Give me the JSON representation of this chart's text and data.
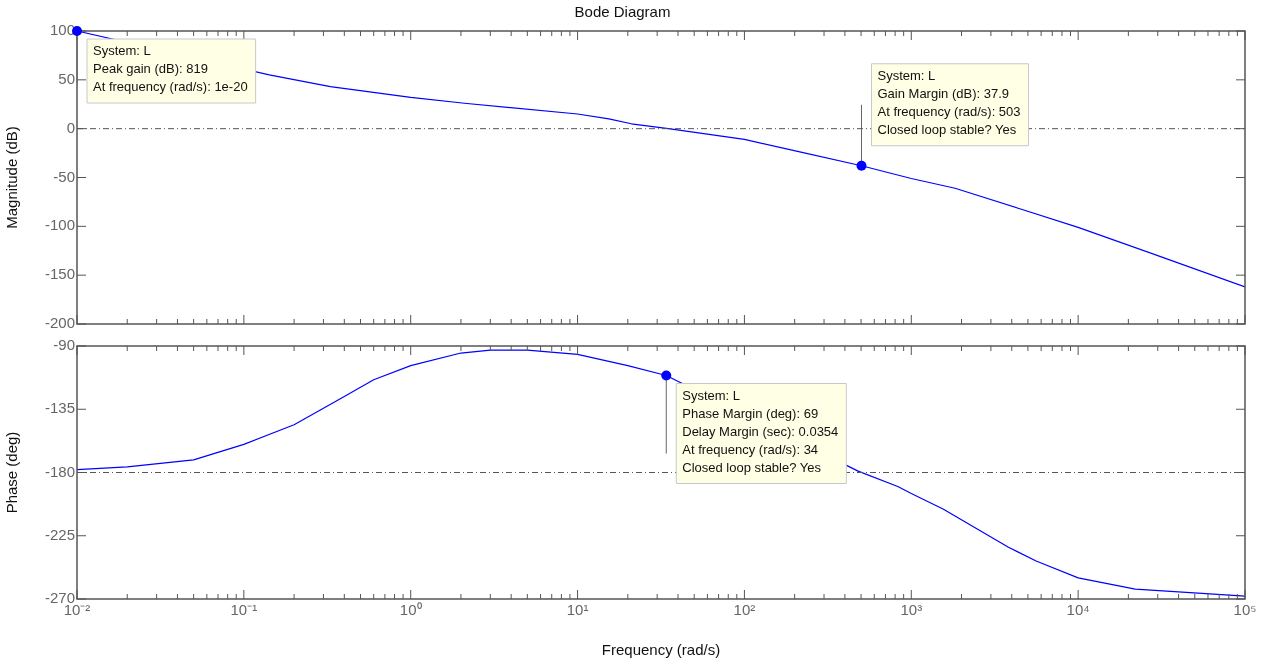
{
  "chart_data": [
    {
      "type": "line",
      "title": "Bode Diagram",
      "ylabel": "Magnitude (dB)",
      "log": "x",
      "tick_labels": "y",
      "series": [
        {
          "color": "#0000ff",
          "x": [
            0.01,
            0.142,
            0.33,
            1,
            2.1,
            10,
            15.4,
            21,
            35,
            100,
            218,
            503,
            1000,
            1830,
            4470,
            10000,
            30000,
            100000
          ],
          "values": [
            100,
            55,
            43,
            32,
            26,
            15,
            10,
            5,
            0,
            -11,
            -24,
            -38,
            -51,
            -61,
            -82,
            -101,
            -130,
            -162
          ]
        }
      ],
      "xlim": [
        0.01,
        100000
      ],
      "xticks": [
        {
          "value": 0.01,
          "label": null
        },
        {
          "value": 0.02,
          "label": null
        },
        {
          "value": 0.03,
          "label": null
        },
        {
          "value": 0.04,
          "label": null
        },
        {
          "value": 0.05,
          "label": null
        },
        {
          "value": 0.06,
          "label": null
        },
        {
          "value": 0.07,
          "label": null
        },
        {
          "value": 0.08,
          "label": null
        },
        {
          "value": 0.09,
          "label": null
        },
        {
          "value": 0.1,
          "label": null
        },
        {
          "value": 0.2,
          "label": null
        },
        {
          "value": 0.3,
          "label": null
        },
        {
          "value": 0.4,
          "label": null
        },
        {
          "value": 0.5,
          "label": null
        },
        {
          "value": 0.6,
          "label": null
        },
        {
          "value": 0.7,
          "label": null
        },
        {
          "value": 0.8,
          "label": null
        },
        {
          "value": 0.9,
          "label": null
        },
        {
          "value": 1,
          "label": null
        },
        {
          "value": 2,
          "label": null
        },
        {
          "value": 3,
          "label": null
        },
        {
          "value": 4,
          "label": null
        },
        {
          "value": 5,
          "label": null
        },
        {
          "value": 6,
          "label": null
        },
        {
          "value": 7,
          "label": null
        },
        {
          "value": 8,
          "label": null
        },
        {
          "value": 9,
          "label": null
        },
        {
          "value": 10,
          "label": null
        },
        {
          "value": 20,
          "label": null
        },
        {
          "value": 30,
          "label": null
        },
        {
          "value": 40,
          "label": null
        },
        {
          "value": 50,
          "label": null
        },
        {
          "value": 60,
          "label": null
        },
        {
          "value": 70,
          "label": null
        },
        {
          "value": 80,
          "label": null
        },
        {
          "value": 90,
          "label": null
        },
        {
          "value": 100,
          "label": null
        },
        {
          "value": 200,
          "label": null
        },
        {
          "value": 300,
          "label": null
        },
        {
          "value": 400,
          "label": null
        },
        {
          "value": 500,
          "label": null
        },
        {
          "value": 600,
          "label": null
        },
        {
          "value": 700,
          "label": null
        },
        {
          "value": 800,
          "label": null
        },
        {
          "value": 900,
          "label": null
        },
        {
          "value": 1000,
          "label": null
        },
        {
          "value": 2000,
          "label": null
        },
        {
          "value": 3000,
          "label": null
        },
        {
          "value": 4000,
          "label": null
        },
        {
          "value": 5000,
          "label": null
        },
        {
          "value": 6000,
          "label": null
        },
        {
          "value": 7000,
          "label": null
        },
        {
          "value": 8000,
          "label": null
        },
        {
          "value": 9000,
          "label": null
        },
        {
          "value": 10000,
          "label": null
        },
        {
          "value": 20000,
          "label": null
        },
        {
          "value": 30000,
          "label": null
        },
        {
          "value": 40000,
          "label": null
        },
        {
          "value": 50000,
          "label": null
        },
        {
          "value": 60000,
          "label": null
        },
        {
          "value": 70000,
          "label": null
        },
        {
          "value": 80000,
          "label": null
        },
        {
          "value": 90000,
          "label": null
        },
        {
          "value": 100000,
          "label": null
        }
      ],
      "ylim": [
        -200,
        100
      ],
      "yticks": [
        -200,
        -150,
        -100,
        -50,
        0,
        50,
        100
      ],
      "ref_lines": [
        {
          "axis": "y",
          "value": 0,
          "color": "#555555",
          "line_style": "dashed"
        }
      ],
      "annotations": [
        {
          "text": "System: L\nPeak gain (dB): 819\nAt frequency (rad/s): 1e-20",
          "x": 0.01,
          "y": 100
        },
        {
          "text": "System: L\nGain Margin (dB): 37.9\nAt frequency (rad/s): 503\nClosed loop stable? Yes",
          "x": 503,
          "y": -38
        }
      ]
    },
    {
      "type": "line",
      "xlabel": "Frequency (rad/s)",
      "ylabel": "Phase (deg)",
      "log": "x",
      "series": [
        {
          "color": "#0000ff",
          "x": [
            0.01,
            0.02,
            0.05,
            0.1,
            0.2,
            0.4,
            0.6,
            1,
            2,
            3,
            5,
            10,
            20,
            34,
            480,
            830,
            1000,
            1550,
            3800,
            5600,
            10000,
            22000,
            100000
          ],
          "values": [
            -178,
            -176,
            -171,
            -160,
            -146,
            -126,
            -114,
            -104,
            -95,
            -93,
            -93,
            -96,
            -104,
            -111,
            -179,
            -190,
            -195,
            -206,
            -233,
            -243,
            -255,
            -263,
            -268
          ]
        }
      ],
      "xlim": [
        0.01,
        100000
      ],
      "xticks": [
        {
          "value": 0.01,
          "label": "10⁻²"
        },
        {
          "value": 0.02,
          "label": null
        },
        {
          "value": 0.03,
          "label": null
        },
        {
          "value": 0.04,
          "label": null
        },
        {
          "value": 0.05,
          "label": null
        },
        {
          "value": 0.06,
          "label": null
        },
        {
          "value": 0.07,
          "label": null
        },
        {
          "value": 0.08,
          "label": null
        },
        {
          "value": 0.09,
          "label": null
        },
        {
          "value": 0.1,
          "label": "10⁻¹"
        },
        {
          "value": 0.2,
          "label": null
        },
        {
          "value": 0.3,
          "label": null
        },
        {
          "value": 0.4,
          "label": null
        },
        {
          "value": 0.5,
          "label": null
        },
        {
          "value": 0.6,
          "label": null
        },
        {
          "value": 0.7,
          "label": null
        },
        {
          "value": 0.8,
          "label": null
        },
        {
          "value": 0.9,
          "label": null
        },
        {
          "value": 1,
          "label": "10⁰"
        },
        {
          "value": 2,
          "label": null
        },
        {
          "value": 3,
          "label": null
        },
        {
          "value": 4,
          "label": null
        },
        {
          "value": 5,
          "label": null
        },
        {
          "value": 6,
          "label": null
        },
        {
          "value": 7,
          "label": null
        },
        {
          "value": 8,
          "label": null
        },
        {
          "value": 9,
          "label": null
        },
        {
          "value": 10,
          "label": "10¹"
        },
        {
          "value": 20,
          "label": null
        },
        {
          "value": 30,
          "label": null
        },
        {
          "value": 40,
          "label": null
        },
        {
          "value": 50,
          "label": null
        },
        {
          "value": 60,
          "label": null
        },
        {
          "value": 70,
          "label": null
        },
        {
          "value": 80,
          "label": null
        },
        {
          "value": 90,
          "label": null
        },
        {
          "value": 100,
          "label": "10²"
        },
        {
          "value": 200,
          "label": null
        },
        {
          "value": 300,
          "label": null
        },
        {
          "value": 400,
          "label": null
        },
        {
          "value": 500,
          "label": null
        },
        {
          "value": 600,
          "label": null
        },
        {
          "value": 700,
          "label": null
        },
        {
          "value": 800,
          "label": null
        },
        {
          "value": 900,
          "label": null
        },
        {
          "value": 1000,
          "label": "10³"
        },
        {
          "value": 2000,
          "label": null
        },
        {
          "value": 3000,
          "label": null
        },
        {
          "value": 4000,
          "label": null
        },
        {
          "value": 5000,
          "label": null
        },
        {
          "value": 6000,
          "label": null
        },
        {
          "value": 7000,
          "label": null
        },
        {
          "value": 8000,
          "label": null
        },
        {
          "value": 9000,
          "label": null
        },
        {
          "value": 10000,
          "label": "10⁴"
        },
        {
          "value": 20000,
          "label": null
        },
        {
          "value": 30000,
          "label": null
        },
        {
          "value": 40000,
          "label": null
        },
        {
          "value": 50000,
          "label": null
        },
        {
          "value": 60000,
          "label": null
        },
        {
          "value": 70000,
          "label": null
        },
        {
          "value": 80000,
          "label": null
        },
        {
          "value": 90000,
          "label": null
        },
        {
          "value": 100000,
          "label": "10⁵"
        }
      ],
      "ylim": [
        -270,
        -90
      ],
      "yticks": [
        -270,
        -225,
        -180,
        -135,
        -90
      ],
      "ref_lines": [
        {
          "axis": "y",
          "value": -180,
          "color": "#555555",
          "line_style": "dashed"
        }
      ],
      "annotations": [
        {
          "text": "System: L\nPhase Margin (deg): 69\nDelay Margin (sec): 0.0354\nAt frequency (rad/s): 34\nClosed loop stable? Yes",
          "x": 34,
          "y": -111
        }
      ]
    }
  ]
}
